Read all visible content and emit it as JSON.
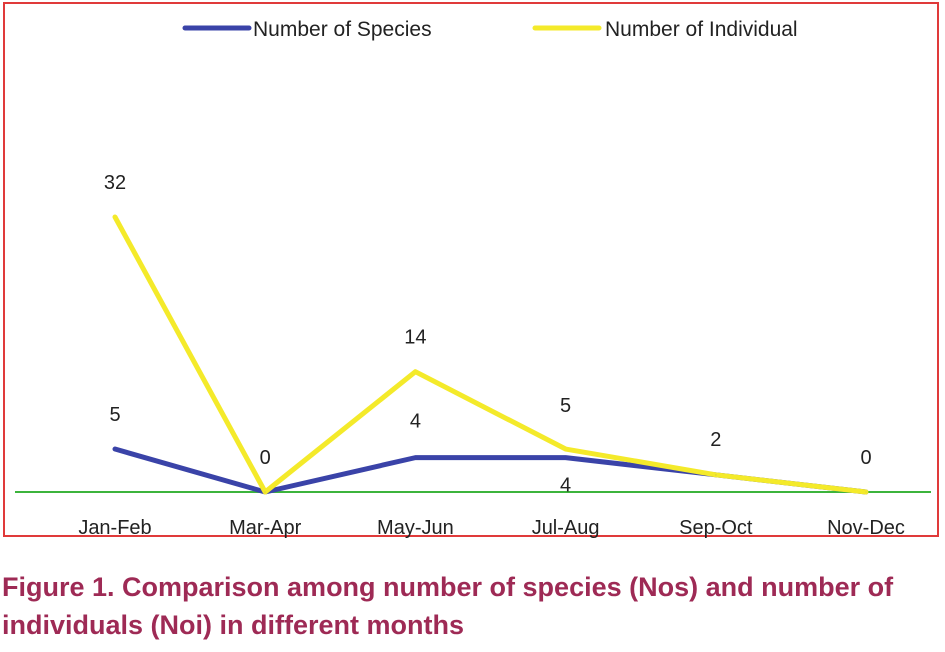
{
  "chart_data": {
    "type": "line",
    "categories": [
      "Jan-Feb",
      "Mar-Apr",
      "May-Jun",
      "Jul-Aug",
      "Sep-Oct",
      "Nov-Dec"
    ],
    "series": [
      {
        "name": "Number of Species",
        "values": [
          5,
          0,
          4,
          4,
          2,
          0
        ],
        "color": "#3a43a8"
      },
      {
        "name": "Number of Individual",
        "values": [
          32,
          0,
          14,
          5,
          2,
          0
        ],
        "color": "#f4ea2a"
      }
    ],
    "data_labels": [
      {
        "text": "32",
        "series": 1,
        "index": 0
      },
      {
        "text": "5",
        "series": 0,
        "index": 0
      },
      {
        "text": "0",
        "series": 1,
        "index": 1
      },
      {
        "text": "14",
        "series": 1,
        "index": 2
      },
      {
        "text": "4",
        "series": 0,
        "index": 2
      },
      {
        "text": "5",
        "series": 1,
        "index": 3
      },
      {
        "text": "4",
        "series": 0,
        "index": 3
      },
      {
        "text": "2",
        "series": 1,
        "index": 4
      },
      {
        "text": "0",
        "series": 1,
        "index": 5
      }
    ],
    "ylim": [
      0,
      32
    ],
    "axis_color": "#3cb43c",
    "frame_color": "#e03a3a",
    "legend_position": "top"
  },
  "caption": "Figure 1. Comparison among number of species (Nos) and number of individuals (Noi) in different months"
}
